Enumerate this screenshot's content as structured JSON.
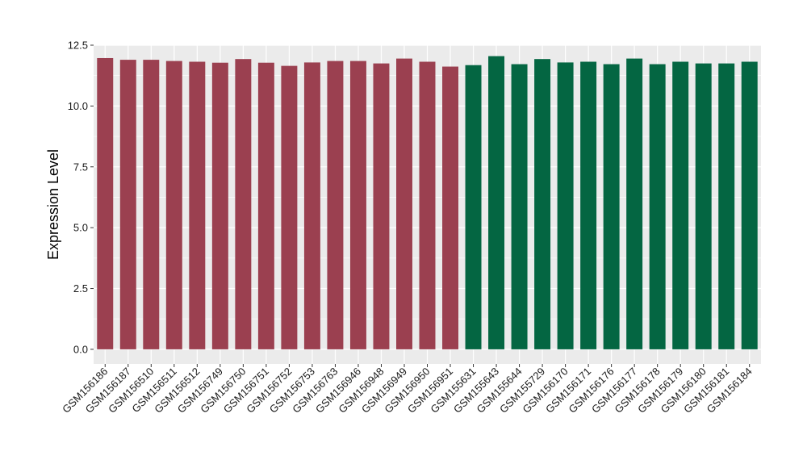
{
  "chart_data": {
    "type": "bar",
    "title": "",
    "xlabel": "",
    "ylabel": "Expression Level",
    "ylim": [
      -0.6,
      12.5
    ],
    "yticks": [
      0.0,
      2.5,
      5.0,
      7.5,
      10.0,
      12.5
    ],
    "ytick_labels": [
      "0.0",
      "2.5",
      "5.0",
      "7.5",
      "10.0",
      "12.5"
    ],
    "grid": true,
    "legend": "none",
    "categories": [
      "GSM156186",
      "GSM156187",
      "GSM156510",
      "GSM156511",
      "GSM156512",
      "GSM156749",
      "GSM156750",
      "GSM156751",
      "GSM156752",
      "GSM156753",
      "GSM156763",
      "GSM156946",
      "GSM156948",
      "GSM156949",
      "GSM156950",
      "GSM156951",
      "GSM155631",
      "GSM155643",
      "GSM155644",
      "GSM155729",
      "GSM156170",
      "GSM156171",
      "GSM156176",
      "GSM156177",
      "GSM156178",
      "GSM156179",
      "GSM156180",
      "GSM156181",
      "GSM156184"
    ],
    "values": [
      11.97,
      11.9,
      11.9,
      11.85,
      11.82,
      11.78,
      11.93,
      11.78,
      11.65,
      11.79,
      11.85,
      11.85,
      11.75,
      11.95,
      11.82,
      11.62,
      11.68,
      12.05,
      11.72,
      11.93,
      11.79,
      11.82,
      11.72,
      11.95,
      11.72,
      11.82,
      11.75,
      11.75,
      11.82
    ],
    "bar_colors": [
      "#9b4050",
      "#9b4050",
      "#9b4050",
      "#9b4050",
      "#9b4050",
      "#9b4050",
      "#9b4050",
      "#9b4050",
      "#9b4050",
      "#9b4050",
      "#9b4050",
      "#9b4050",
      "#9b4050",
      "#9b4050",
      "#9b4050",
      "#9b4050",
      "#046642",
      "#046642",
      "#046642",
      "#046642",
      "#046642",
      "#046642",
      "#046642",
      "#046642",
      "#046642",
      "#046642",
      "#046642",
      "#046642",
      "#046642"
    ],
    "panel_color": "#ebebeb",
    "grid_color": "#ffffff"
  }
}
